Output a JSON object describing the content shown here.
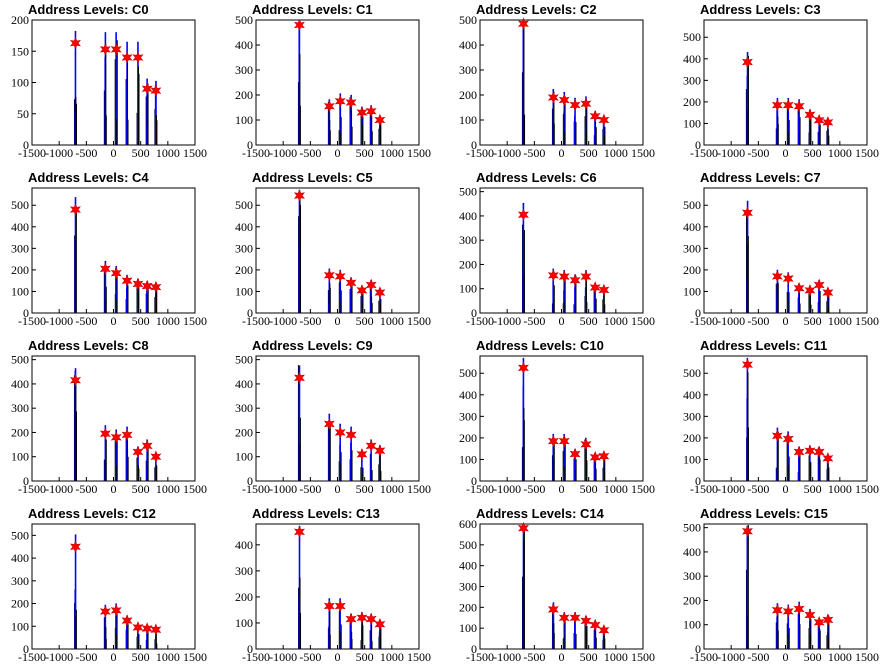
{
  "chart_data": [
    {
      "title": "Address Levels: C0",
      "type": "bar",
      "xticks": [
        -1500,
        -1000,
        -500,
        0,
        500,
        1000,
        1500
      ],
      "xtick_labels": [
        "-1500",
        "-1000",
        "-500",
        "0",
        "500",
        "1000",
        "1500"
      ],
      "ylim": [
        0,
        200
      ],
      "yticks": [
        50,
        100,
        150,
        200
      ],
      "ymarkers": [
        163,
        153,
        153,
        140,
        140,
        90,
        87
      ]
    },
    {
      "title": "Address Levels: C1",
      "type": "bar",
      "xticks": [
        -1500,
        -1000,
        -500,
        0,
        500,
        1000,
        1500
      ],
      "xtick_labels": [
        "-1500",
        "-1000",
        "-500",
        "0",
        "500",
        "1000",
        "1500"
      ],
      "ylim": [
        0,
        500
      ],
      "yticks": [
        100,
        200,
        300,
        400,
        500
      ],
      "ymarkers": [
        480,
        155,
        175,
        170,
        130,
        135,
        100
      ]
    },
    {
      "title": "Address Levels: C2",
      "type": "bar",
      "xticks": [
        -1500,
        -1000,
        -500,
        0,
        500,
        1000,
        1500
      ],
      "xtick_labels": [
        "-1500",
        "-1000",
        "-500",
        "0",
        "500",
        "1000",
        "1500"
      ],
      "ylim": [
        0,
        500
      ],
      "yticks": [
        100,
        200,
        300,
        400,
        500
      ],
      "ymarkers": [
        485,
        190,
        180,
        160,
        165,
        115,
        100
      ]
    },
    {
      "title": "Address Levels: C3",
      "type": "bar",
      "xticks": [
        -1500,
        -1000,
        -500,
        0,
        500,
        1000,
        1500
      ],
      "xtick_labels": [
        "-1500",
        "-1000",
        "-500",
        "0",
        "500",
        "1000",
        "1500"
      ],
      "ylim": [
        0,
        580
      ],
      "yticks": [
        100,
        200,
        300,
        400,
        500
      ],
      "ymarkers": [
        385,
        185,
        185,
        180,
        140,
        115,
        105
      ]
    },
    {
      "title": "Address Levels: C4",
      "type": "bar",
      "xticks": [
        -1500,
        -1000,
        -500,
        0,
        500,
        1000,
        1500
      ],
      "xtick_labels": [
        "-1500",
        "-1000",
        "-500",
        "0",
        "500",
        "1000",
        "1500"
      ],
      "ylim": [
        0,
        580
      ],
      "yticks": [
        100,
        200,
        300,
        400,
        500
      ],
      "ymarkers": [
        480,
        205,
        185,
        150,
        135,
        125,
        120
      ]
    },
    {
      "title": "Address Levels: C5",
      "type": "bar",
      "xticks": [
        -1500,
        -1000,
        -500,
        0,
        500,
        1000,
        1500
      ],
      "xtick_labels": [
        "-1500",
        "-1000",
        "-500",
        "0",
        "500",
        "1000",
        "1500"
      ],
      "ylim": [
        0,
        580
      ],
      "yticks": [
        100,
        200,
        300,
        400,
        500
      ],
      "ymarkers": [
        545,
        175,
        170,
        140,
        105,
        130,
        95
      ]
    },
    {
      "title": "Address Levels: C6",
      "type": "bar",
      "xticks": [
        -1500,
        -1000,
        -500,
        0,
        500,
        1000,
        1500
      ],
      "xtick_labels": [
        "-1500",
        "-1000",
        "-500",
        "0",
        "500",
        "1000",
        "1500"
      ],
      "ylim": [
        0,
        515
      ],
      "yticks": [
        100,
        200,
        300,
        400,
        500
      ],
      "ymarkers": [
        405,
        155,
        150,
        135,
        150,
        105,
        95
      ]
    },
    {
      "title": "Address Levels: C7",
      "type": "bar",
      "xticks": [
        -1500,
        -1000,
        -500,
        0,
        500,
        1000,
        1500
      ],
      "xtick_labels": [
        "-1500",
        "-1000",
        "-500",
        "0",
        "500",
        "1000",
        "1500"
      ],
      "ylim": [
        0,
        580
      ],
      "yticks": [
        100,
        200,
        300,
        400,
        500
      ],
      "ymarkers": [
        465,
        170,
        160,
        115,
        105,
        130,
        95
      ]
    },
    {
      "title": "Address Levels: C8",
      "type": "bar",
      "xticks": [
        -1500,
        -1000,
        -500,
        0,
        500,
        1000,
        1500
      ],
      "xtick_labels": [
        "-1500",
        "-1000",
        "-500",
        "0",
        "500",
        "1000",
        "1500"
      ],
      "ylim": [
        0,
        515
      ],
      "yticks": [
        100,
        200,
        300,
        400,
        500
      ],
      "ymarkers": [
        415,
        195,
        180,
        190,
        120,
        145,
        100
      ]
    },
    {
      "title": "Address Levels: C9",
      "type": "bar",
      "xticks": [
        -1500,
        -1000,
        -500,
        0,
        500,
        1000,
        1500
      ],
      "xtick_labels": [
        "-1500",
        "-1000",
        "-500",
        "0",
        "500",
        "1000",
        "1500"
      ],
      "ylim": [
        0,
        515
      ],
      "yticks": [
        100,
        200,
        300,
        400,
        500
      ],
      "ymarkers": [
        425,
        235,
        200,
        190,
        110,
        145,
        125
      ]
    },
    {
      "title": "Address Levels: C10",
      "type": "bar",
      "xticks": [
        -1500,
        -1000,
        -500,
        0,
        500,
        1000,
        1500
      ],
      "xtick_labels": [
        "-1500",
        "-1000",
        "-500",
        "0",
        "500",
        "1000",
        "1500"
      ],
      "ylim": [
        0,
        580
      ],
      "yticks": [
        100,
        200,
        300,
        400,
        500
      ],
      "ymarkers": [
        525,
        185,
        185,
        125,
        170,
        110,
        115
      ]
    },
    {
      "title": "Address Levels: C11",
      "type": "bar",
      "xticks": [
        -1500,
        -1000,
        -500,
        0,
        500,
        1000,
        1500
      ],
      "xtick_labels": [
        "-1500",
        "-1000",
        "-500",
        "0",
        "500",
        "1000",
        "1500"
      ],
      "ylim": [
        0,
        580
      ],
      "yticks": [
        100,
        200,
        300,
        400,
        500
      ],
      "ymarkers": [
        540,
        210,
        195,
        135,
        140,
        135,
        105
      ]
    },
    {
      "title": "Address Levels: C12",
      "type": "bar",
      "xticks": [
        -1500,
        -1000,
        -500,
        0,
        500,
        1000,
        1500
      ],
      "xtick_labels": [
        "-1500",
        "-1000",
        "-500",
        "0",
        "500",
        "1000",
        "1500"
      ],
      "ylim": [
        0,
        550
      ],
      "yticks": [
        100,
        200,
        300,
        400,
        500
      ],
      "ymarkers": [
        450,
        165,
        170,
        125,
        95,
        90,
        85
      ]
    },
    {
      "title": "Address Levels: C13",
      "type": "bar",
      "xticks": [
        -1500,
        -1000,
        -500,
        0,
        500,
        1000,
        1500
      ],
      "xtick_labels": [
        "-1500",
        "-1000",
        "-500",
        "0",
        "500",
        "1000",
        "1500"
      ],
      "ylim": [
        0,
        480
      ],
      "yticks": [
        100,
        200,
        300,
        400
      ],
      "ymarkers": [
        450,
        165,
        165,
        115,
        120,
        115,
        95
      ]
    },
    {
      "title": "Address Levels: C14",
      "type": "bar",
      "xticks": [
        -1500,
        -1000,
        -500,
        0,
        500,
        1000,
        1500
      ],
      "xtick_labels": [
        "-1500",
        "-1000",
        "-500",
        "0",
        "500",
        "1000",
        "1500"
      ],
      "ylim": [
        0,
        600
      ],
      "yticks": [
        100,
        200,
        300,
        400,
        500,
        600
      ],
      "ymarkers": [
        580,
        190,
        150,
        150,
        135,
        115,
        90
      ]
    },
    {
      "title": "Address Levels: C15",
      "type": "bar",
      "xticks": [
        -1500,
        -1000,
        -500,
        0,
        500,
        1000,
        1500
      ],
      "xtick_labels": [
        "-1500",
        "-1000",
        "-500",
        "0",
        "500",
        "1000",
        "1500"
      ],
      "ylim": [
        0,
        515
      ],
      "yticks": [
        100,
        200,
        300,
        400,
        500
      ],
      "ymarkers": [
        485,
        160,
        155,
        165,
        140,
        110,
        120
      ]
    }
  ]
}
